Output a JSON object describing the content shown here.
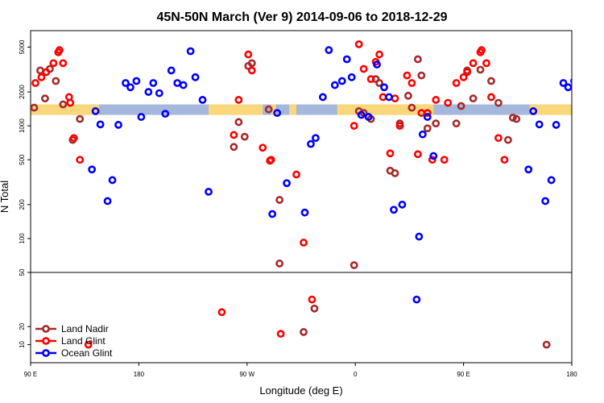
{
  "chart_data": {
    "type": "scatter",
    "title": "45N-50N March (Ver 9)   2014-09-06 to 2018-12-29",
    "xlabel": "Longitude (deg E)",
    "ylabel": "N Total",
    "x_ticks": [
      {
        "value": 90,
        "label": "90 E"
      },
      {
        "value": 180,
        "label": "180"
      },
      {
        "value": 270,
        "label": "90 W"
      },
      {
        "value": 360,
        "label": "0"
      },
      {
        "value": 450,
        "label": "90 E"
      },
      {
        "value": 540,
        "label": "180"
      }
    ],
    "xlim": [
      90,
      540
    ],
    "upper_panel": {
      "scale": "log",
      "ylim": [
        50,
        7000
      ],
      "y_ticks": [
        "50",
        "100",
        "200",
        "500",
        "1000",
        "2000",
        "5000"
      ]
    },
    "lower_panel": {
      "scale": "linear",
      "ylim": [
        0,
        50
      ],
      "y_ticks": [
        "10",
        "20"
      ]
    },
    "colors": {
      "land_nadir": "#a52a2a",
      "land_glint": "#ff0000",
      "ocean_glint": "#0000ff",
      "ocean_band": "#a5b8dc",
      "land_band": "#f9d77a"
    },
    "band": {
      "y_min": 1250,
      "y_max": 1550
    },
    "land_segments": [
      [
        90,
        147
      ],
      [
        238,
        283
      ],
      [
        290,
        294
      ],
      [
        305,
        311
      ],
      [
        345,
        425
      ],
      [
        505,
        540
      ]
    ],
    "legend_position": "bottom-left",
    "series": [
      {
        "name": "Land Nadir",
        "key": "land_nadir",
        "points": [
          [
            93,
            1450
          ],
          [
            98,
            3100
          ],
          [
            102,
            1750
          ],
          [
            106,
            3200
          ],
          [
            111,
            2500
          ],
          [
            117,
            1550
          ],
          [
            125,
            750
          ],
          [
            131,
            1150
          ],
          [
            259,
            650
          ],
          [
            263,
            1080
          ],
          [
            268,
            800
          ],
          [
            274,
            3600
          ],
          [
            271,
            3400
          ],
          [
            288,
            1400
          ],
          [
            297,
            220
          ],
          [
            297,
            60
          ],
          [
            317,
            17
          ],
          [
            326,
            30
          ],
          [
            359,
            58
          ],
          [
            363,
            1350
          ],
          [
            367,
            1300
          ],
          [
            373,
            1150
          ],
          [
            377,
            2600
          ],
          [
            380,
            2400
          ],
          [
            389,
            400
          ],
          [
            393,
            380
          ],
          [
            397,
            1050
          ],
          [
            404,
            1850
          ],
          [
            407,
            1450
          ],
          [
            412,
            3900
          ],
          [
            415,
            2800
          ],
          [
            420,
            950
          ],
          [
            427,
            1050
          ],
          [
            444,
            1050
          ],
          [
            448,
            1500
          ],
          [
            453,
            3100
          ],
          [
            458,
            1750
          ],
          [
            464,
            3150
          ],
          [
            473,
            2500
          ],
          [
            479,
            1600
          ],
          [
            487,
            750
          ],
          [
            491,
            1180
          ],
          [
            494,
            1150
          ],
          [
            519,
            10
          ]
        ]
      },
      {
        "name": "Land Glint",
        "key": "land_glint",
        "points": [
          [
            94,
            2400
          ],
          [
            99,
            2700
          ],
          [
            103,
            3000
          ],
          [
            109,
            3600
          ],
          [
            113,
            4500
          ],
          [
            114,
            4700
          ],
          [
            117,
            3600
          ],
          [
            122,
            1800
          ],
          [
            123,
            1600
          ],
          [
            126,
            780
          ],
          [
            131,
            500
          ],
          [
            138,
            10
          ],
          [
            249,
            28
          ],
          [
            259,
            830
          ],
          [
            263,
            1700
          ],
          [
            271,
            4300
          ],
          [
            274,
            3100
          ],
          [
            283,
            640
          ],
          [
            289,
            490
          ],
          [
            290,
            500
          ],
          [
            298,
            16
          ],
          [
            311,
            370
          ],
          [
            317,
            92
          ],
          [
            324,
            35
          ],
          [
            359,
            1000
          ],
          [
            363,
            5300
          ],
          [
            367,
            3200
          ],
          [
            373,
            2600
          ],
          [
            377,
            3700
          ],
          [
            380,
            4300
          ],
          [
            383,
            1800
          ],
          [
            389,
            570
          ],
          [
            393,
            1750
          ],
          [
            397,
            1000
          ],
          [
            403,
            2800
          ],
          [
            407,
            2400
          ],
          [
            412,
            560
          ],
          [
            415,
            1300
          ],
          [
            420,
            1300
          ],
          [
            424,
            500
          ],
          [
            427,
            1700
          ],
          [
            434,
            500
          ],
          [
            437,
            1600
          ],
          [
            444,
            2400
          ],
          [
            450,
            2700
          ],
          [
            453,
            3000
          ],
          [
            458,
            3600
          ],
          [
            464,
            4500
          ],
          [
            465,
            4700
          ],
          [
            469,
            3600
          ],
          [
            473,
            1800
          ],
          [
            479,
            780
          ],
          [
            484,
            500
          ]
        ]
      },
      {
        "name": "Ocean Glint",
        "key": "ocean_glint",
        "points": [
          [
            141,
            410
          ],
          [
            144,
            1350
          ],
          [
            148,
            1030
          ],
          [
            154,
            215
          ],
          [
            158,
            330
          ],
          [
            163,
            1020
          ],
          [
            169,
            2400
          ],
          [
            173,
            2200
          ],
          [
            178,
            2500
          ],
          [
            182,
            1200
          ],
          [
            188,
            2000
          ],
          [
            192,
            2400
          ],
          [
            197,
            1950
          ],
          [
            202,
            1280
          ],
          [
            207,
            3100
          ],
          [
            212,
            2400
          ],
          [
            217,
            2300
          ],
          [
            223,
            4600
          ],
          [
            227,
            2700
          ],
          [
            233,
            1700
          ],
          [
            238,
            260
          ],
          [
            291,
            165
          ],
          [
            295,
            1300
          ],
          [
            303,
            310
          ],
          [
            318,
            170
          ],
          [
            323,
            690
          ],
          [
            327,
            780
          ],
          [
            333,
            1800
          ],
          [
            338,
            4700
          ],
          [
            343,
            2300
          ],
          [
            349,
            2500
          ],
          [
            353,
            3900
          ],
          [
            357,
            2700
          ],
          [
            365,
            1250
          ],
          [
            371,
            1200
          ],
          [
            378,
            3500
          ],
          [
            384,
            2200
          ],
          [
            388,
            1800
          ],
          [
            392,
            180
          ],
          [
            399,
            200
          ],
          [
            411,
            35
          ],
          [
            413,
            104
          ],
          [
            416,
            840
          ],
          [
            420,
            1200
          ],
          [
            425,
            540
          ],
          [
            504,
            410
          ],
          [
            508,
            1350
          ],
          [
            513,
            1030
          ],
          [
            518,
            215
          ],
          [
            523,
            330
          ],
          [
            527,
            1020
          ],
          [
            533,
            2400
          ],
          [
            537,
            2200
          ],
          [
            542,
            2500
          ]
        ]
      }
    ]
  }
}
